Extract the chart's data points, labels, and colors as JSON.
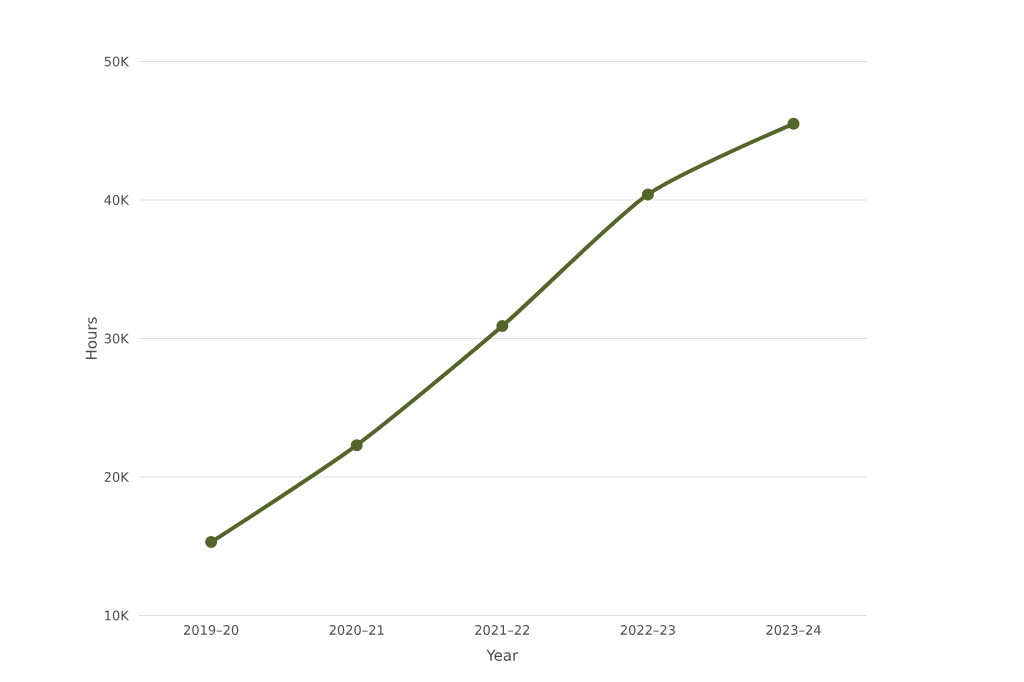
{
  "chart_data": {
    "type": "line",
    "xlabel": "Year",
    "ylabel": "Hours",
    "categories": [
      "2019–20",
      "2020–21",
      "2021–22",
      "2022–23",
      "2023–24"
    ],
    "series": [
      {
        "color": "#55652a",
        "values": [
          15300,
          22300,
          30900,
          40400,
          45500
        ]
      }
    ],
    "ylim": [
      10000,
      50000
    ],
    "yticks": [
      {
        "value": 10000,
        "label": "10K"
      },
      {
        "value": 20000,
        "label": "20K"
      },
      {
        "value": 30000,
        "label": "30K"
      },
      {
        "value": 40000,
        "label": "40K"
      },
      {
        "value": 50000,
        "label": "50K"
      }
    ],
    "grid": "y",
    "marker": "circle",
    "line_style": "solid"
  }
}
